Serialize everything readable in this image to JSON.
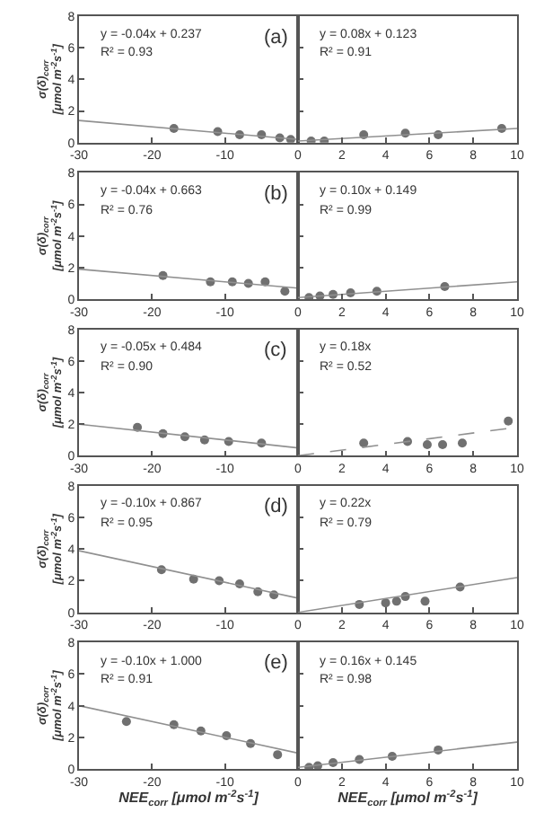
{
  "chart_data": [
    {
      "type": "scatter",
      "grid": false,
      "xlim": [
        -30,
        0
      ],
      "xticks": [
        -30,
        -20,
        -10,
        0
      ],
      "ylim": [
        0,
        8
      ],
      "yticks": [
        0,
        2,
        4,
        6,
        8
      ],
      "ylabel": "σ(δ)$_{corr}$ [μmol m$^{-2}$s$^{-1}$]",
      "annotations": [
        "y = -0.04x + 0.237",
        "R² = 0.93",
        "(a)"
      ],
      "series": [
        {
          "marker": "circle",
          "color": "#707070",
          "x": [
            -17,
            -11,
            -8,
            -5,
            -2.5,
            -1
          ],
          "values": [
            0.9,
            0.7,
            0.5,
            0.5,
            0.3,
            0.2
          ]
        },
        {
          "type": "line",
          "marker": "none",
          "color": "#909090",
          "line_style": "solid",
          "x": [
            -30,
            0
          ],
          "values": [
            1.4,
            0.2
          ]
        }
      ]
    },
    {
      "type": "scatter",
      "grid": false,
      "tick_labels": "x",
      "xlim": [
        0,
        10
      ],
      "xticks": [
        2,
        4,
        6,
        8,
        10
      ],
      "ylim": [
        0,
        8
      ],
      "yticks": [
        0,
        2,
        4,
        6,
        8
      ],
      "annotations": [
        "y = 0.08x + 0.123",
        "R² = 0.91"
      ],
      "series": [
        {
          "marker": "circle",
          "color": "#707070",
          "x": [
            0.6,
            1.2,
            3,
            4.9,
            6.4,
            9.3
          ],
          "values": [
            0.1,
            0.1,
            0.5,
            0.6,
            0.5,
            0.9
          ]
        },
        {
          "type": "line",
          "marker": "none",
          "color": "#909090",
          "line_style": "solid",
          "x": [
            0,
            10
          ],
          "values": [
            0.1,
            0.9
          ]
        }
      ]
    },
    {
      "type": "scatter",
      "grid": false,
      "xlim": [
        -30,
        0
      ],
      "xticks": [
        -30,
        -20,
        -10,
        0
      ],
      "ylim": [
        0,
        8
      ],
      "yticks": [
        0,
        2,
        4,
        6,
        8
      ],
      "ylabel": "σ(δ)$_{corr}$ [μmol m$^{-2}$s$^{-1}$]",
      "annotations": [
        "y = -0.04x + 0.663",
        "R² = 0.76",
        "(b)"
      ],
      "series": [
        {
          "marker": "circle",
          "color": "#707070",
          "x": [
            -18.5,
            -12,
            -9,
            -6.8,
            -4.5,
            -1.8
          ],
          "values": [
            1.5,
            1.1,
            1.1,
            1.0,
            1.1,
            0.5
          ]
        },
        {
          "type": "line",
          "marker": "none",
          "color": "#909090",
          "line_style": "solid",
          "x": [
            -30,
            0
          ],
          "values": [
            1.9,
            0.7
          ]
        }
      ]
    },
    {
      "type": "scatter",
      "grid": false,
      "tick_labels": "x",
      "xlim": [
        0,
        10
      ],
      "xticks": [
        2,
        4,
        6,
        8,
        10
      ],
      "ylim": [
        0,
        8
      ],
      "yticks": [
        0,
        2,
        4,
        6,
        8
      ],
      "annotations": [
        "y = 0.10x + 0.149",
        "R² = 0.99"
      ],
      "series": [
        {
          "marker": "circle",
          "color": "#707070",
          "x": [
            0.5,
            1,
            1.6,
            2.4,
            3.6,
            6.7
          ],
          "values": [
            0.1,
            0.2,
            0.3,
            0.4,
            0.5,
            0.8
          ]
        },
        {
          "type": "line",
          "marker": "none",
          "color": "#909090",
          "line_style": "solid",
          "x": [
            0,
            10
          ],
          "values": [
            0.1,
            1.1
          ]
        }
      ]
    },
    {
      "type": "scatter",
      "grid": false,
      "xlim": [
        -30,
        0
      ],
      "xticks": [
        -30,
        -20,
        -10,
        0
      ],
      "ylim": [
        0,
        8
      ],
      "yticks": [
        0,
        2,
        4,
        6,
        8
      ],
      "ylabel": "σ(δ)$_{corr}$ [μmol m$^{-2}$s$^{-1}$]",
      "annotations": [
        "y = -0.05x + 0.484",
        "R² = 0.90",
        "(c)"
      ],
      "series": [
        {
          "marker": "circle",
          "color": "#707070",
          "x": [
            -22,
            -18.5,
            -15.5,
            -12.8,
            -9.5,
            -5
          ],
          "values": [
            1.8,
            1.4,
            1.2,
            1.0,
            0.9,
            0.8
          ]
        },
        {
          "type": "line",
          "marker": "none",
          "color": "#909090",
          "line_style": "solid",
          "x": [
            -30,
            0
          ],
          "values": [
            2.0,
            0.5
          ]
        }
      ]
    },
    {
      "type": "scatter",
      "grid": false,
      "tick_labels": "x",
      "xlim": [
        0,
        10
      ],
      "xticks": [
        2,
        4,
        6,
        8,
        10
      ],
      "ylim": [
        0,
        8
      ],
      "yticks": [
        0,
        2,
        4,
        6,
        8
      ],
      "annotations": [
        "y = 0.18x",
        "R² = 0.52"
      ],
      "series": [
        {
          "marker": "circle",
          "color": "#707070",
          "x": [
            3,
            5,
            5.9,
            6.6,
            7.5,
            9.6
          ],
          "values": [
            0.8,
            0.9,
            0.7,
            0.7,
            0.8,
            2.2
          ]
        },
        {
          "type": "line",
          "marker": "none",
          "color": "#909090",
          "line_style": "dashed",
          "x": [
            0,
            10
          ],
          "values": [
            0,
            1.8
          ]
        }
      ]
    },
    {
      "type": "scatter",
      "grid": false,
      "xlim": [
        -30,
        0
      ],
      "xticks": [
        -30,
        -20,
        -10,
        0
      ],
      "ylim": [
        0,
        8
      ],
      "yticks": [
        0,
        2,
        4,
        6,
        8
      ],
      "ylabel": "σ(δ)$_{corr}$ [μmol m$^{-2}$s$^{-1}$]",
      "annotations": [
        "y = -0.10x + 0.867",
        "R² = 0.95",
        "(d)"
      ],
      "series": [
        {
          "marker": "circle",
          "color": "#707070",
          "x": [
            -18.7,
            -14.3,
            -10.8,
            -8,
            -5.5,
            -3.3
          ],
          "values": [
            2.7,
            2.1,
            2.0,
            1.8,
            1.3,
            1.1
          ]
        },
        {
          "type": "line",
          "marker": "none",
          "color": "#909090",
          "line_style": "solid",
          "x": [
            -30,
            0
          ],
          "values": [
            3.9,
            0.9
          ]
        }
      ]
    },
    {
      "type": "scatter",
      "grid": false,
      "tick_labels": "x",
      "xlim": [
        0,
        10
      ],
      "xticks": [
        2,
        4,
        6,
        8,
        10
      ],
      "ylim": [
        0,
        8
      ],
      "yticks": [
        0,
        2,
        4,
        6,
        8
      ],
      "annotations": [
        "y = 0.22x",
        "R² = 0.79"
      ],
      "series": [
        {
          "marker": "circle",
          "color": "#707070",
          "x": [
            2.8,
            4,
            4.5,
            4.9,
            5.8,
            7.4
          ],
          "values": [
            0.5,
            0.6,
            0.7,
            1.0,
            0.7,
            1.6
          ]
        },
        {
          "type": "line",
          "marker": "none",
          "color": "#909090",
          "line_style": "solid",
          "x": [
            0,
            10
          ],
          "values": [
            0,
            2.2
          ]
        }
      ]
    },
    {
      "type": "scatter",
      "grid": false,
      "xlim": [
        -30,
        0
      ],
      "xticks": [
        -30,
        -20,
        -10,
        0
      ],
      "ylim": [
        0,
        8
      ],
      "yticks": [
        0,
        2,
        4,
        6,
        8
      ],
      "ylabel": "σ(δ)$_{corr}$ [μmol m$^{-2}$s$^{-1}$]",
      "xlabel": "NEE$_{corr}$ [μmol m$^{-2}$s$^{-1}$]",
      "annotations": [
        "y = -0.10x + 1.000",
        "R² = 0.91",
        "(e)"
      ],
      "series": [
        {
          "marker": "circle",
          "color": "#707070",
          "x": [
            -23.5,
            -17,
            -13.3,
            -9.8,
            -6.5,
            -2.8
          ],
          "values": [
            3.0,
            2.8,
            2.4,
            2.1,
            1.6,
            0.9
          ]
        },
        {
          "type": "line",
          "marker": "none",
          "color": "#909090",
          "line_style": "solid",
          "x": [
            -30,
            0
          ],
          "values": [
            4.0,
            1.0
          ]
        }
      ]
    },
    {
      "type": "scatter",
      "grid": false,
      "tick_labels": "x",
      "xlim": [
        0,
        10
      ],
      "xticks": [
        2,
        4,
        6,
        8,
        10
      ],
      "ylim": [
        0,
        8
      ],
      "yticks": [
        0,
        2,
        4,
        6,
        8
      ],
      "xlabel": "NEE$_{corr}$ [μmol m$^{-2}$s$^{-1}$]",
      "annotations": [
        "y = 0.16x + 0.145",
        "R² = 0.98"
      ],
      "series": [
        {
          "marker": "circle",
          "color": "#707070",
          "x": [
            0.5,
            0.9,
            1.6,
            2.8,
            4.3,
            6.4
          ],
          "values": [
            0.1,
            0.2,
            0.4,
            0.6,
            0.8,
            1.2
          ]
        },
        {
          "type": "line",
          "marker": "none",
          "color": "#909090",
          "line_style": "solid",
          "x": [
            0,
            10
          ],
          "values": [
            0.1,
            1.7
          ]
        }
      ]
    }
  ]
}
